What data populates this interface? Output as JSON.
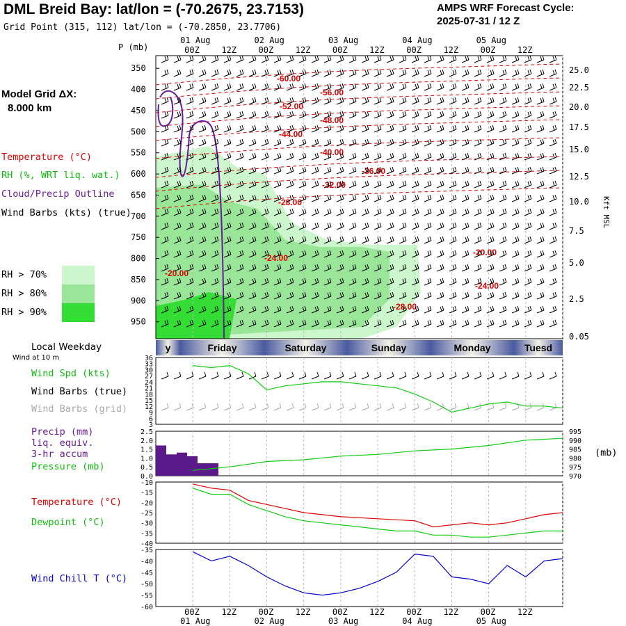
{
  "header": {
    "title": "DML Breid Bay:  lat/lon = (-70.2675, 23.7153)",
    "subtitle": "Grid Point (315, 112) lat/lon = (-70.2850, 23.7706)",
    "cycle_label": "AMPS WRF Forecast Cycle:",
    "cycle_value": "2025-07-31 / 12  Z"
  },
  "left_labels": {
    "model_grid": "Model Grid ΔX:",
    "model_grid_value": "8.000 km",
    "temperature": "Temperature (°C)",
    "rh": "RH (%, WRT liq. wat.)",
    "cloud": "Cloud/Precip Outline",
    "wind_barbs": "Wind Barbs (kts) (true)",
    "rh70": "RH > 70%",
    "rh80": "RH > 80%",
    "rh90": "RH > 90%",
    "local_weekday": "Local Weekday",
    "wind_10m": "Wind at 10 m",
    "wind_spd": "Wind Spd (kts)",
    "wind_barbs_true": "Wind Barbs (true)",
    "wind_barbs_grid": "Wind Barbs (grid)",
    "precip": "Precip (mm)",
    "liq_equiv": "liq. equiv.",
    "accum": "3-hr accum",
    "pressure": "Pressure (mb)",
    "temperature2": "Temperature (°C)",
    "dewpoint": "Dewpoint (°C)",
    "wind_chill": "Wind Chill T (°C)",
    "pressure_unit": "(mb)"
  },
  "colors": {
    "rh70": "#ccf6cc",
    "rh80": "#99e699",
    "rh90": "#33dd33",
    "temperature": "#dd0000",
    "dewpoint": "#11cc11",
    "cloud": "#6a1a9a",
    "windchill": "#0000cc",
    "precip_bar": "#5a1a8a",
    "pressure": "#11cc11",
    "wind_speed": "#11cc11",
    "wind_grid": "#aaaaaa",
    "weekday_band": "#4a5aa0"
  },
  "axes": {
    "p_axis_label": "P (mb)",
    "pressure_levels": [
      "350",
      "400",
      "450",
      "500",
      "550",
      "600",
      "650",
      "700",
      "750",
      "800",
      "850",
      "900",
      "950"
    ],
    "kft_label": "Kft MSL",
    "kft_ticks": [
      "25.0",
      "22.5",
      "20.0",
      "17.5",
      "15.0",
      "12.5",
      "10.0",
      "7.5",
      "5.0",
      "2.5",
      "0.05"
    ],
    "time_labels": [
      "00Z",
      "12Z",
      "00Z",
      "12Z",
      "00Z",
      "12Z",
      "00Z",
      "12Z",
      "00Z",
      "12Z"
    ],
    "date_labels": [
      "01 Aug",
      "02 Aug",
      "03 Aug",
      "04 Aug",
      "05 Aug"
    ],
    "weekdays": [
      "y",
      "Friday",
      "Saturday",
      "Sunday",
      "Monday",
      "Tuesd"
    ],
    "wind_ticks": [
      "36",
      "33",
      "30",
      "27",
      "24",
      "21",
      "18",
      "15",
      "12",
      "9",
      "6",
      "3"
    ],
    "precip_ticks": [
      "2.5",
      "2.0",
      "1.5",
      "1.0",
      "0.5",
      "0.0"
    ],
    "pressure_ticks": [
      "995",
      "990",
      "985",
      "980",
      "975",
      "970"
    ],
    "temp_ticks": [
      "-10",
      "-15",
      "-20",
      "-25",
      "-30",
      "-35",
      "-40"
    ],
    "chill_ticks": [
      "-35",
      "-40",
      "-45",
      "-50",
      "-55",
      "-60"
    ]
  },
  "temp_contours": [
    "-60.00",
    "-56.00",
    "-52.00",
    "-48.00",
    "-44.00",
    "-40.00",
    "-36.00",
    "-32.00",
    "-28.00",
    "-24.00",
    "-20.00",
    "-20.00",
    "-24.00",
    "-28.00"
  ],
  "chart_data": [
    {
      "type": "line",
      "title": "Wind Spd (kts)",
      "ylim": [
        3,
        36
      ],
      "x_hours": [
        0,
        6,
        12,
        18,
        24,
        30,
        36,
        42,
        48,
        54,
        60,
        66,
        72,
        78,
        84,
        90,
        96,
        102,
        108,
        114,
        120
      ],
      "series": [
        {
          "name": "Wind Spd (kts)",
          "values": [
            32,
            31,
            32,
            28,
            20,
            22,
            23,
            24,
            24,
            23,
            22,
            21,
            18,
            14,
            9,
            11,
            13,
            14,
            12,
            12,
            11
          ]
        }
      ]
    },
    {
      "type": "bar",
      "title": "Precip (mm)",
      "ylim": [
        0,
        2.5
      ],
      "x_hours": [
        0,
        3,
        6,
        9,
        12,
        15,
        18,
        21
      ],
      "values": [
        1.7,
        1.2,
        1.3,
        1.1,
        0.7,
        0.7,
        0.0,
        0.0
      ]
    },
    {
      "type": "line",
      "title": "Pressure (mb)",
      "ylim": [
        970,
        995
      ],
      "x_hours": [
        0,
        12,
        24,
        36,
        48,
        60,
        72,
        84,
        96,
        108,
        120
      ],
      "series": [
        {
          "name": "Pressure (mb)",
          "values": [
            973,
            975,
            978,
            979,
            981,
            982,
            984,
            985,
            987,
            990,
            991
          ]
        }
      ]
    },
    {
      "type": "line",
      "title": "Temperature / Dewpoint",
      "ylim": [
        -40,
        -10
      ],
      "x_hours": [
        0,
        6,
        12,
        18,
        24,
        30,
        36,
        42,
        48,
        54,
        60,
        66,
        72,
        78,
        84,
        90,
        96,
        102,
        108,
        114,
        120
      ],
      "series": [
        {
          "name": "Temperature (°C)",
          "values": [
            -11,
            -13,
            -14,
            -19,
            -21,
            -23,
            -25,
            -26,
            -27,
            -27.5,
            -28,
            -28.5,
            -29,
            -32,
            -31,
            -30,
            -31,
            -30,
            -28,
            -26,
            -25
          ]
        },
        {
          "name": "Dewpoint (°C)",
          "values": [
            -13,
            -16,
            -16,
            -21,
            -24,
            -27,
            -29,
            -30,
            -31,
            -32,
            -33,
            -34,
            -34,
            -36,
            -36,
            -37,
            -37,
            -36,
            -35,
            -34,
            -34
          ]
        }
      ]
    },
    {
      "type": "line",
      "title": "Wind Chill T (°C)",
      "ylim": [
        -60,
        -35
      ],
      "x_hours": [
        0,
        6,
        12,
        18,
        24,
        30,
        36,
        42,
        48,
        54,
        60,
        66,
        72,
        78,
        84,
        90,
        96,
        102,
        108,
        114,
        120
      ],
      "series": [
        {
          "name": "Wind Chill T (°C)",
          "values": [
            -36,
            -40,
            -38,
            -42,
            -47,
            -51,
            -54,
            -55,
            -54,
            -52,
            -49,
            -45,
            -37,
            -38,
            -47,
            -48,
            -50,
            -42,
            -47,
            -40,
            -39
          ]
        }
      ]
    }
  ]
}
